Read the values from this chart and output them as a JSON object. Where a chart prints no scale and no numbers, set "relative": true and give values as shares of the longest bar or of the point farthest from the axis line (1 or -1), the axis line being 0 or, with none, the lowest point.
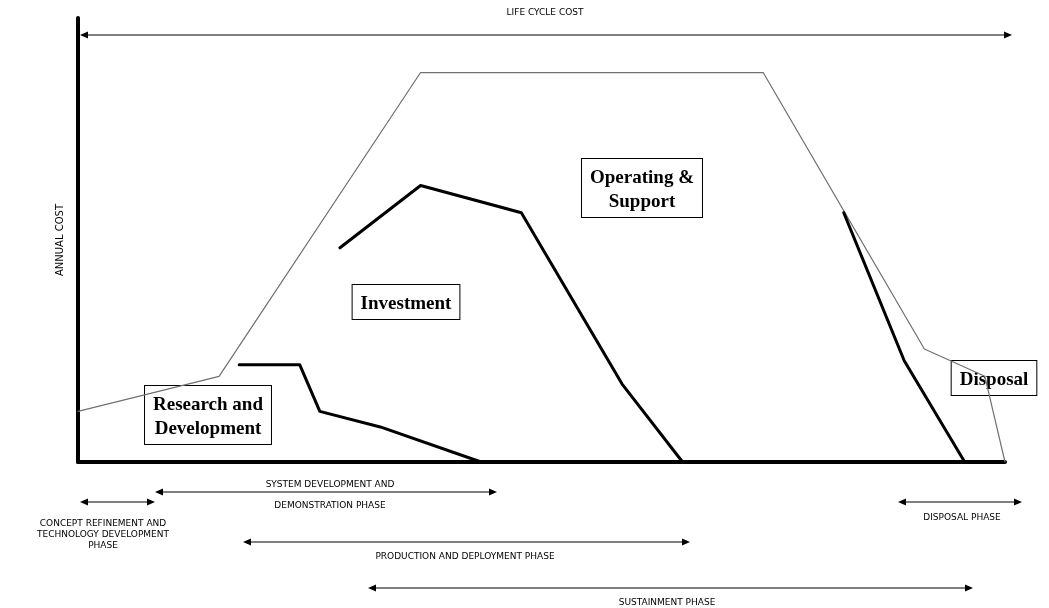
{
  "chart_data": {
    "type": "line",
    "relative": true,
    "ylabel": "ANNUAL COST",
    "grid": false,
    "marker": "none",
    "line_style": "solid",
    "categories": [
      null,
      null,
      null,
      null,
      null,
      null,
      null,
      null,
      null,
      null,
      null,
      null,
      null,
      null,
      null,
      null,
      null,
      null,
      null,
      null,
      null,
      null,
      null,
      null,
      null,
      null,
      null,
      null,
      null,
      null,
      null,
      null,
      null,
      null,
      null,
      null,
      null,
      null,
      null,
      null,
      null,
      null,
      null,
      null,
      null,
      null,
      null
    ],
    "series": [
      {
        "color": "#707070",
        "values": [
          0.13,
          null,
          null,
          null,
          null,
          null,
          null,
          0.22,
          null,
          null,
          null,
          null,
          null,
          null,
          null,
          null,
          null,
          1,
          null,
          null,
          null,
          null,
          null,
          null,
          null,
          null,
          null,
          null,
          null,
          null,
          null,
          null,
          null,
          null,
          1,
          null,
          null,
          null,
          null,
          null,
          null,
          null,
          0.29,
          null,
          null,
          0.22,
          0
        ]
      },
      {
        "color": "#000000",
        "values": [
          null,
          null,
          null,
          null,
          null,
          null,
          null,
          null,
          0.25,
          null,
          null,
          0.25,
          0.13,
          null,
          null,
          0.09,
          null,
          null,
          null,
          null,
          0,
          null,
          null,
          null,
          null,
          null,
          null,
          null,
          null,
          null,
          null,
          null,
          null,
          null,
          null,
          null,
          null,
          null,
          null,
          null,
          null,
          null,
          null,
          null,
          null,
          null,
          null
        ]
      },
      {
        "color": "#000000",
        "values": [
          null,
          null,
          null,
          null,
          null,
          null,
          null,
          null,
          null,
          null,
          null,
          null,
          null,
          0.55,
          null,
          null,
          null,
          0.71,
          null,
          null,
          null,
          null,
          0.64,
          null,
          null,
          null,
          null,
          0.2,
          null,
          null,
          0,
          null,
          null,
          null,
          null,
          null,
          null,
          null,
          null,
          null,
          null,
          null,
          null,
          null,
          null,
          null,
          null
        ]
      },
      {
        "color": "#000000",
        "values": [
          null,
          null,
          null,
          null,
          null,
          null,
          null,
          null,
          null,
          null,
          null,
          null,
          null,
          null,
          null,
          null,
          null,
          null,
          null,
          null,
          null,
          null,
          null,
          null,
          null,
          null,
          null,
          null,
          null,
          null,
          null,
          null,
          null,
          null,
          null,
          null,
          null,
          null,
          0.64,
          null,
          null,
          0.26,
          null,
          null,
          0,
          null,
          null
        ]
      }
    ],
    "annotations": [
      "LIFE CYCLE COST",
      "Operating &\nSupport",
      "Investment",
      "Research and\nDevelopment",
      "Disposal",
      "SYSTEM DEVELOPMENT AND\nDEMONSTRATION PHASE",
      "CONCEPT REFINEMENT AND\nTECHNOLOGY DEVELOPMENT\nPHASE",
      "PRODUCTION AND DEPLOYMENT PHASE",
      "DISPOSAL PHASE",
      "SUSTAINMENT PHASE"
    ]
  }
}
